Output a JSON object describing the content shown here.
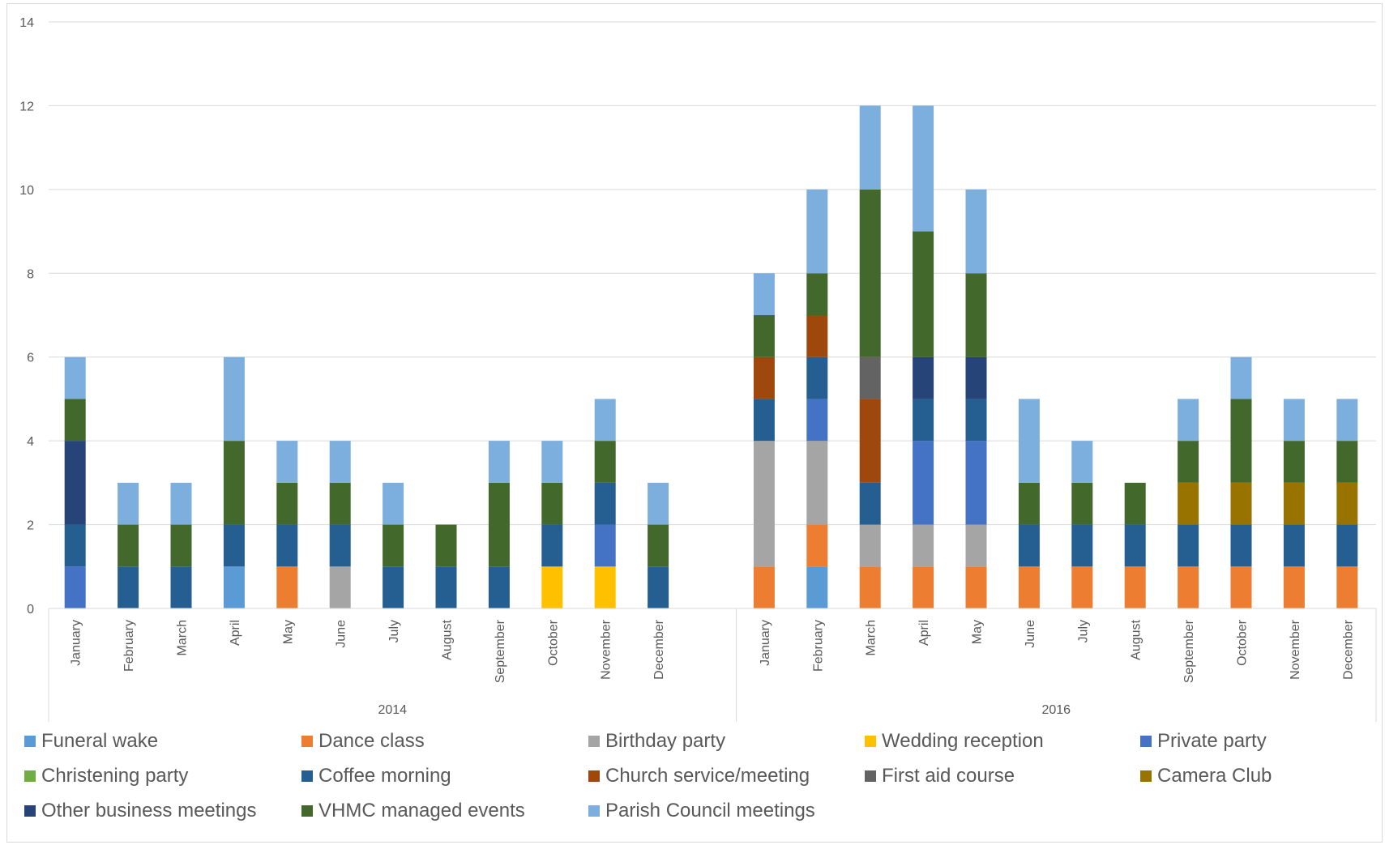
{
  "chart_data": {
    "type": "bar",
    "stacked": true,
    "ylim": [
      0,
      14
    ],
    "yticks": [
      0,
      2,
      4,
      6,
      8,
      10,
      12,
      14
    ],
    "grid": true,
    "legend_position": "bottom",
    "groups": [
      {
        "label": "2014",
        "categories": [
          "January",
          "February",
          "March",
          "April",
          "May",
          "June",
          "July",
          "August",
          "September",
          "October",
          "November",
          "December"
        ]
      },
      {
        "label": "2016",
        "categories": [
          "January",
          "February",
          "March",
          "April",
          "May",
          "June",
          "July",
          "August",
          "September",
          "October",
          "November",
          "December"
        ]
      }
    ],
    "series": [
      {
        "name": "Funeral wake",
        "color": "#5B9BD5",
        "values": [
          0,
          0,
          0,
          1,
          0,
          0,
          0,
          0,
          0,
          0,
          0,
          0,
          0,
          1,
          0,
          0,
          0,
          0,
          0,
          0,
          0,
          0,
          0,
          0
        ]
      },
      {
        "name": "Dance class",
        "color": "#ED7D31",
        "values": [
          0,
          0,
          0,
          0,
          1,
          0,
          0,
          0,
          0,
          0,
          0,
          0,
          1,
          1,
          1,
          1,
          1,
          1,
          1,
          1,
          1,
          1,
          1,
          1
        ]
      },
      {
        "name": "Birthday party",
        "color": "#A5A5A5",
        "values": [
          0,
          0,
          0,
          0,
          0,
          1,
          0,
          0,
          0,
          0,
          0,
          0,
          3,
          2,
          1,
          1,
          1,
          0,
          0,
          0,
          0,
          0,
          0,
          0
        ]
      },
      {
        "name": "Wedding reception",
        "color": "#FFC000",
        "values": [
          0,
          0,
          0,
          0,
          0,
          0,
          0,
          0,
          0,
          1,
          1,
          0,
          0,
          0,
          0,
          0,
          0,
          0,
          0,
          0,
          0,
          0,
          0,
          0
        ]
      },
      {
        "name": "Private party",
        "color": "#4472C4",
        "values": [
          1,
          0,
          0,
          0,
          0,
          0,
          0,
          0,
          0,
          0,
          1,
          0,
          0,
          1,
          0,
          2,
          2,
          0,
          0,
          0,
          0,
          0,
          0,
          0
        ]
      },
      {
        "name": "Christening party",
        "color": "#70AD47",
        "values": [
          0,
          0,
          0,
          0,
          0,
          0,
          0,
          0,
          0,
          0,
          0,
          0,
          0,
          0,
          0,
          0,
          0,
          0,
          0,
          0,
          0,
          0,
          0,
          0
        ]
      },
      {
        "name": "Coffee morning",
        "color": "#255E91",
        "values": [
          1,
          1,
          1,
          1,
          1,
          1,
          1,
          1,
          1,
          1,
          1,
          1,
          1,
          1,
          1,
          1,
          1,
          1,
          1,
          1,
          1,
          1,
          1,
          1
        ]
      },
      {
        "name": "Church service/meeting",
        "color": "#9E480E",
        "values": [
          0,
          0,
          0,
          0,
          0,
          0,
          0,
          0,
          0,
          0,
          0,
          0,
          1,
          1,
          2,
          0,
          0,
          0,
          0,
          0,
          0,
          0,
          0,
          0
        ]
      },
      {
        "name": "First aid course",
        "color": "#636363",
        "values": [
          0,
          0,
          0,
          0,
          0,
          0,
          0,
          0,
          0,
          0,
          0,
          0,
          0,
          0,
          1,
          0,
          0,
          0,
          0,
          0,
          0,
          0,
          0,
          0
        ]
      },
      {
        "name": "Camera Club",
        "color": "#997300",
        "values": [
          0,
          0,
          0,
          0,
          0,
          0,
          0,
          0,
          0,
          0,
          0,
          0,
          0,
          0,
          0,
          0,
          0,
          0,
          0,
          0,
          1,
          1,
          1,
          1
        ]
      },
      {
        "name": "Other business meetings",
        "color": "#264478",
        "values": [
          2,
          0,
          0,
          0,
          0,
          0,
          0,
          0,
          0,
          0,
          0,
          0,
          0,
          0,
          0,
          1,
          1,
          0,
          0,
          0,
          0,
          0,
          0,
          0
        ]
      },
      {
        "name": "VHMC managed events",
        "color": "#43682B",
        "values": [
          1,
          1,
          1,
          2,
          1,
          1,
          1,
          1,
          2,
          1,
          1,
          1,
          1,
          1,
          4,
          3,
          2,
          1,
          1,
          1,
          1,
          2,
          1,
          1
        ]
      },
      {
        "name": "Parish Council meetings",
        "color": "#7CAFDD",
        "values": [
          1,
          1,
          1,
          2,
          1,
          1,
          1,
          0,
          1,
          1,
          1,
          1,
          1,
          2,
          2,
          3,
          2,
          2,
          1,
          0,
          1,
          1,
          1,
          1
        ]
      }
    ]
  }
}
